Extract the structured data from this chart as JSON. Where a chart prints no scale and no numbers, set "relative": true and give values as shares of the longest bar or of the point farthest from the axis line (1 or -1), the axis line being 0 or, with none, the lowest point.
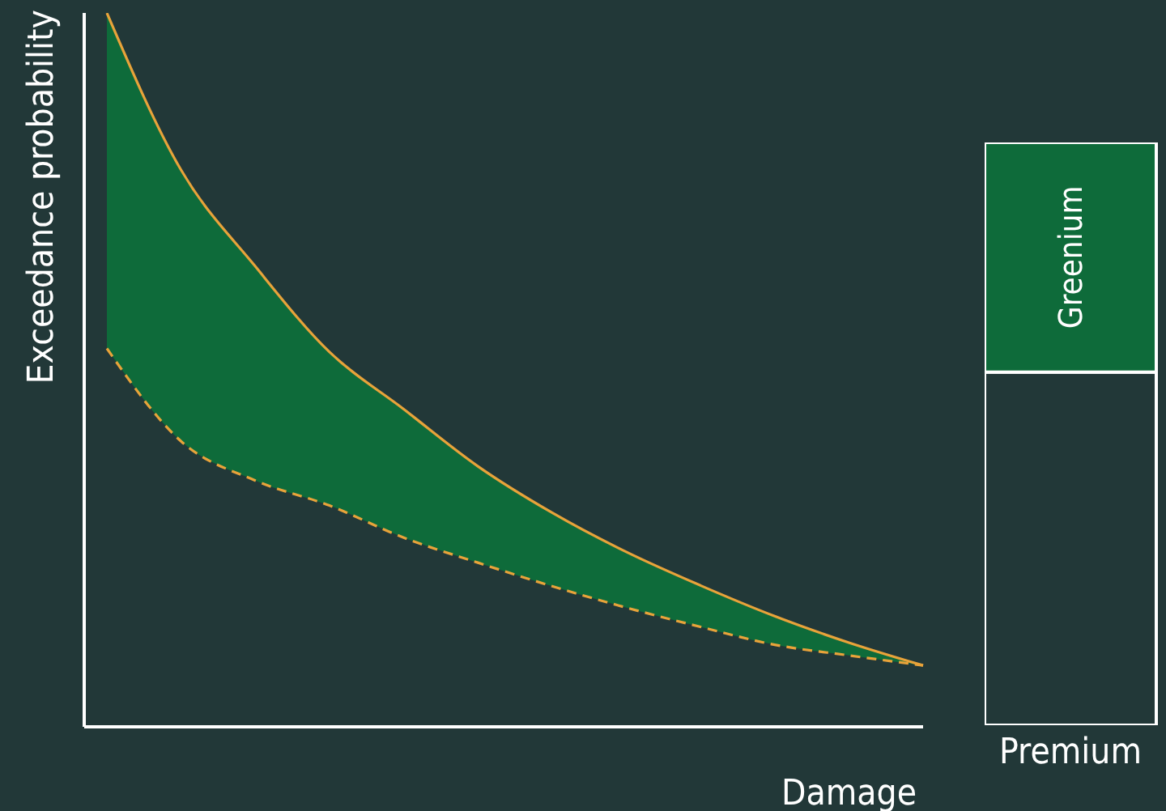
{
  "chart_data": [
    {
      "type": "line",
      "xlabel": "Damage",
      "ylabel": "Exceedance probability",
      "relative": true,
      "legend": false,
      "grid": false,
      "categories": [
        null,
        null,
        null,
        null,
        null,
        null,
        null,
        null,
        null,
        null,
        null,
        null
      ],
      "series": [
        {
          "type": "line",
          "color": "#e8a33a",
          "line_style": "solid",
          "values": [
            1.0,
            0.78,
            0.645,
            0.525,
            0.445,
            0.365,
            0.3,
            0.245,
            0.198,
            0.155,
            0.118,
            0.086
          ],
          "lower": [
            0.53,
            0.4,
            0.345,
            0.31,
            0.265,
            0.23,
            0.197,
            0.167,
            0.14,
            0.115,
            0.1,
            0.086
          ],
          "upper": [
            1.0,
            0.78,
            0.645,
            0.525,
            0.445,
            0.365,
            0.3,
            0.245,
            0.198,
            0.155,
            0.118,
            0.086
          ]
        },
        {
          "type": "line",
          "color": "#e8a33a",
          "line_style": "dashed",
          "values": [
            0.53,
            0.4,
            0.345,
            0.31,
            0.265,
            0.23,
            0.197,
            0.167,
            0.14,
            0.115,
            0.1,
            0.086
          ]
        }
      ]
    },
    {
      "type": "bar",
      "relative": true,
      "stacked": true,
      "legend": false,
      "grid": false,
      "categories": [
        "Premium"
      ],
      "series": [
        {
          "color": "#223838",
          "values": [
            0.606
          ]
        },
        {
          "name": "Greenium",
          "color": "#0e6b3a",
          "values": [
            0.394
          ]
        }
      ]
    }
  ]
}
